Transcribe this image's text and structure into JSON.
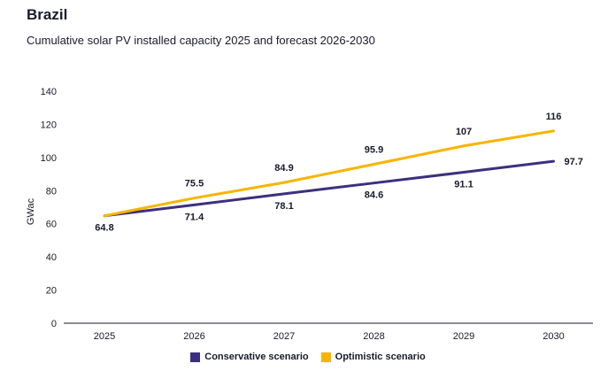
{
  "chart_data": {
    "type": "line",
    "title": "Brazil",
    "subtitle": "Cumulative solar PV installed capacity 2025 and forecast 2026-2030",
    "ylabel": "GWac",
    "xlabel": "",
    "x": [
      "2025",
      "2026",
      "2027",
      "2028",
      "2029",
      "2030"
    ],
    "ylim": [
      0,
      140
    ],
    "yticks": [
      0,
      20,
      40,
      60,
      80,
      100,
      120,
      140
    ],
    "grid": false,
    "legend_position": "bottom",
    "series": [
      {
        "name": "Conservative scenario",
        "color": "#3d2f7f",
        "values": [
          64.8,
          71.4,
          78.1,
          84.6,
          91.1,
          97.7
        ],
        "labels": [
          "64.8",
          "71.4",
          "78.1",
          "84.6",
          "91.1",
          "97.7"
        ]
      },
      {
        "name": "Optimistic scenario",
        "color": "#f7b500",
        "values": [
          64.8,
          75.5,
          84.9,
          95.9,
          107,
          116
        ],
        "labels": [
          "",
          "75.5",
          "84.9",
          "95.9",
          "107",
          "116"
        ]
      }
    ]
  }
}
